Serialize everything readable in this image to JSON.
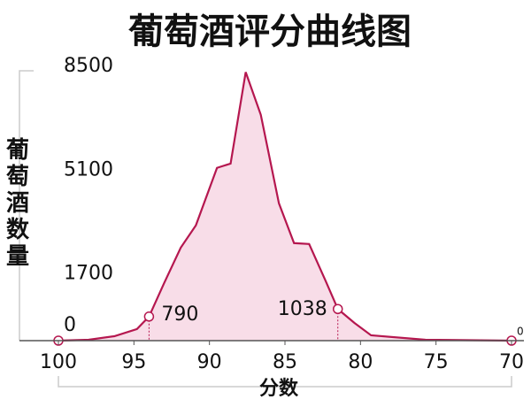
{
  "chart_data": {
    "type": "area",
    "title": "葡萄酒评分曲线图",
    "ylabel": "葡萄酒数量",
    "xlabel": "分数",
    "x": [
      100,
      98,
      96.3,
      94.8,
      94,
      93,
      91.9,
      90.9,
      89.5,
      88.6,
      87.6,
      86.6,
      85.4,
      84.4,
      83.4,
      82.3,
      81.5,
      80.4,
      79.3,
      75.7,
      70
    ],
    "series": [
      {
        "color": "#b5174f",
        "fill": "#f8dde8",
        "values": [
          0,
          30,
          145,
          380,
          790,
          1890,
          3050,
          3780,
          5670,
          5810,
          8810,
          7410,
          4505,
          3200,
          3170,
          1950,
          1038,
          580,
          175,
          30,
          0
        ],
        "value_labels": [
          null,
          null,
          null,
          null,
          "790",
          null,
          null,
          null,
          null,
          null,
          null,
          null,
          null,
          null,
          null,
          null,
          "1038",
          null,
          null,
          null,
          "0"
        ]
      }
    ],
    "xlim": [
      100,
      70
    ],
    "xticks": [
      100,
      95,
      90,
      85,
      80,
      75,
      70
    ],
    "ylim": [
      0,
      9000
    ],
    "yticks": [
      0,
      1700,
      5100,
      8500
    ],
    "grid": false
  }
}
